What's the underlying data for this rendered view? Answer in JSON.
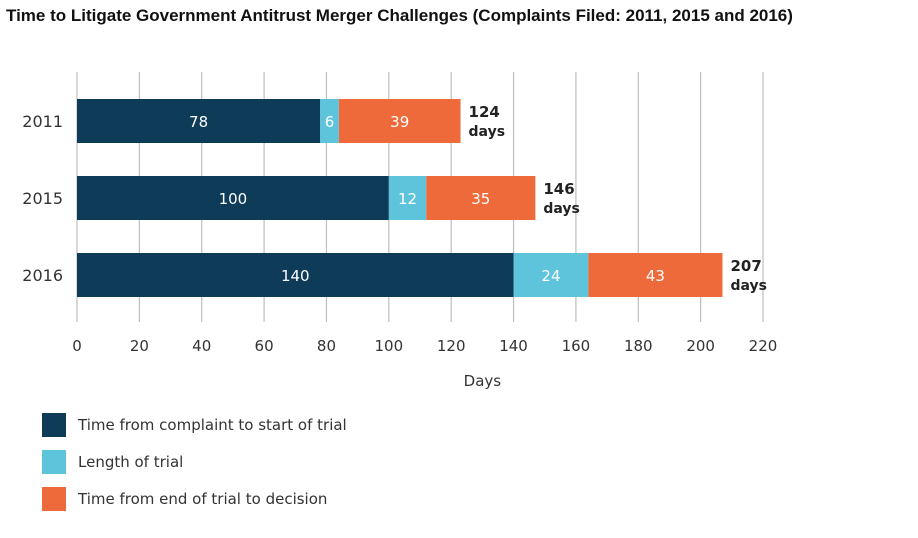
{
  "title": "Time to Litigate Government Antitrust Merger Challenges (Complaints Filed: 2011, 2015 and 2016)",
  "colors": {
    "complaint_to_trial": "#0d3b58",
    "trial_length": "#5ec4dc",
    "trial_to_decision": "#ee6a3a"
  },
  "chart_data": {
    "type": "bar",
    "orientation": "horizontal",
    "stacked": true,
    "categories": [
      "2011",
      "2015",
      "2016"
    ],
    "series": [
      {
        "name": "Time from complaint to start of trial",
        "values": [
          78,
          100,
          140
        ],
        "color": "#0d3b58"
      },
      {
        "name": "Length of trial",
        "values": [
          6,
          12,
          24
        ],
        "color": "#5ec4dc"
      },
      {
        "name": "Time from end of trial to decision",
        "values": [
          39,
          35,
          43
        ],
        "color": "#ee6a3a"
      }
    ],
    "totals": [
      {
        "value": "124",
        "unit": "days"
      },
      {
        "value": "146",
        "unit": "days"
      },
      {
        "value": "207",
        "unit": "days"
      }
    ],
    "xlabel": "Days",
    "ylabel": "",
    "xlim": [
      0,
      220
    ],
    "xticks": [
      0,
      20,
      40,
      60,
      80,
      100,
      120,
      140,
      160,
      180,
      200,
      220
    ],
    "grid": "vertical",
    "legend_position": "bottom-left"
  }
}
